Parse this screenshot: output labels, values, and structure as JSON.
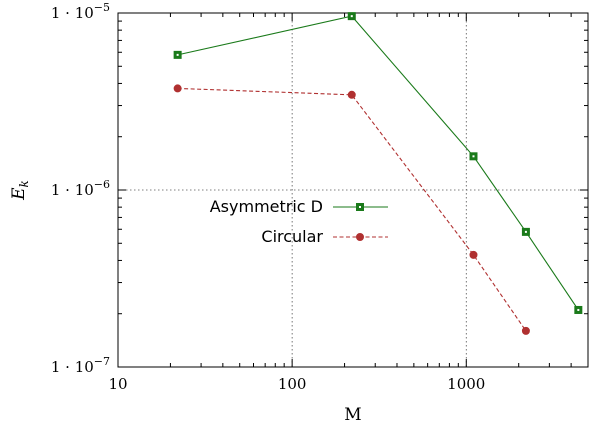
{
  "chart_data": {
    "type": "line",
    "title": "",
    "xlabel": "M",
    "ylabel": "E_k",
    "x_scale": "log",
    "y_scale": "log",
    "xlim": [
      10,
      5000
    ],
    "ylim": [
      1e-07,
      1e-05
    ],
    "grid": true,
    "legend_position": "center-left",
    "x_ticks": [
      {
        "value": 10,
        "label": "10"
      },
      {
        "value": 100,
        "label": "100"
      },
      {
        "value": 1000,
        "label": "1000"
      }
    ],
    "y_ticks": [
      {
        "value": 1e-07,
        "base": "1 · 10",
        "exp": "−7"
      },
      {
        "value": 1e-06,
        "base": "1 · 10",
        "exp": "−6"
      },
      {
        "value": 1e-05,
        "base": "1 · 10",
        "exp": "−5"
      }
    ],
    "series": [
      {
        "name": "Asymmetric D",
        "color": "#1a7a1a",
        "marker": "square",
        "line_style": "solid",
        "x": [
          22,
          220,
          1100,
          2200,
          4400
        ],
        "y": [
          5.8e-06,
          9.6e-06,
          1.55e-06,
          5.8e-07,
          2.1e-07
        ]
      },
      {
        "name": "Circular",
        "color": "#b03030",
        "marker": "circle",
        "line_style": "dashed",
        "x": [
          22,
          220,
          1100,
          2200
        ],
        "y": [
          3.75e-06,
          3.45e-06,
          4.3e-07,
          1.6e-07
        ]
      }
    ]
  }
}
